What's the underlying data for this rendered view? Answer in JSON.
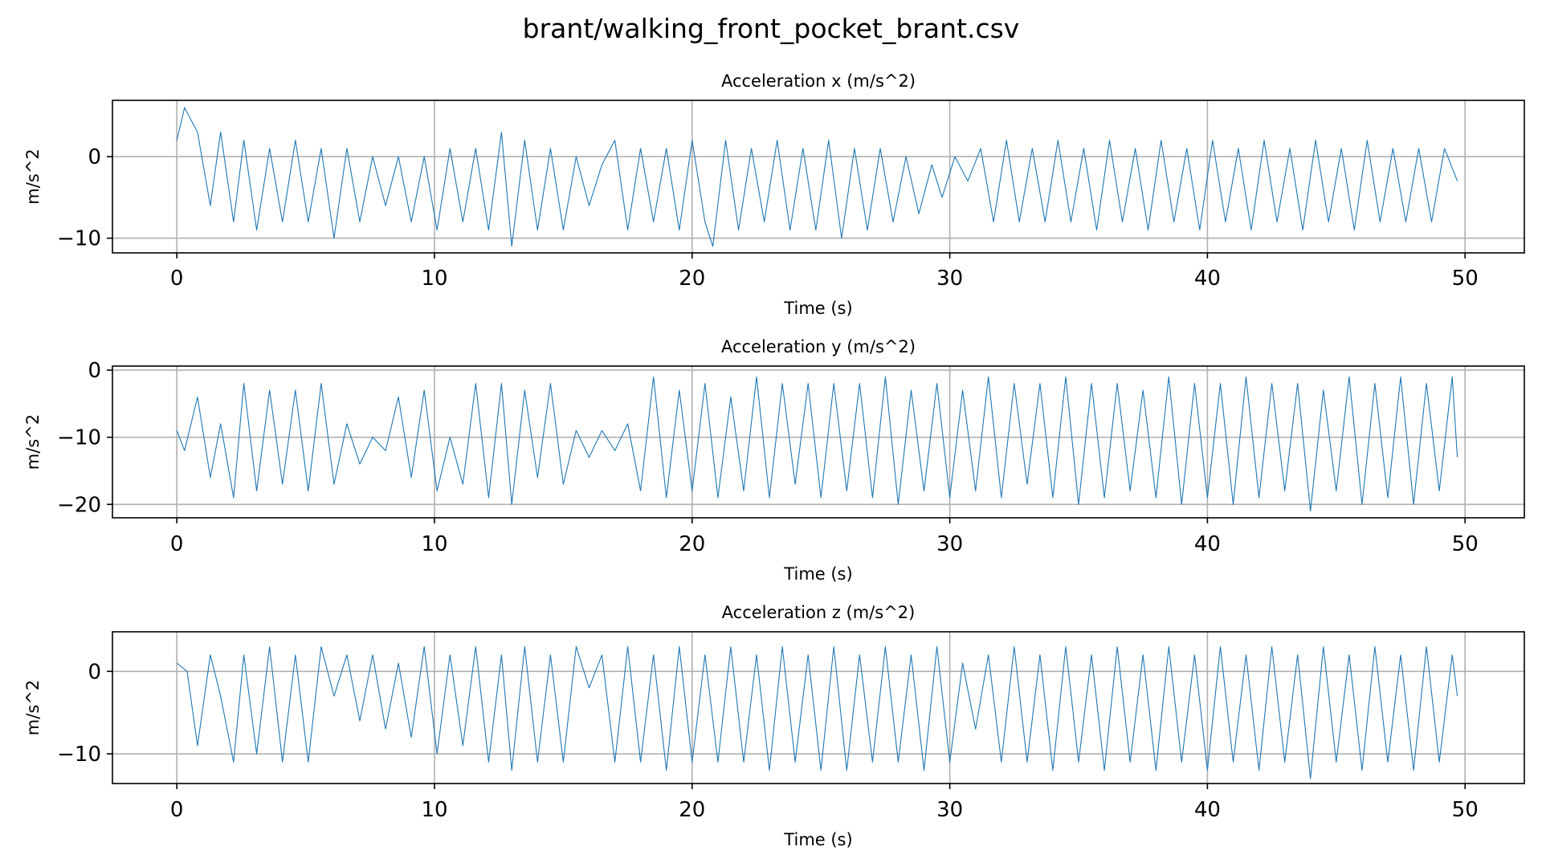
{
  "figure": {
    "suptitle": "brant/walking_front_pocket_brant.csv",
    "line_color": "#1f77b4"
  },
  "chart_data": [
    {
      "type": "line",
      "title": "Acceleration x (m/s^2)",
      "xlabel": "Time (s)",
      "ylabel": "m/s^2",
      "xlim": [
        -2.5,
        52.3
      ],
      "ylim": [
        -11.8,
        6.9
      ],
      "xticks": [
        0,
        10,
        20,
        30,
        40,
        50
      ],
      "yticks": [
        0,
        -10
      ],
      "grid": true,
      "legend": "none",
      "series": [
        {
          "x": [
            0,
            0.3,
            0.8,
            1.3,
            1.7,
            2.2,
            2.6,
            3.1,
            3.6,
            4.1,
            4.6,
            5.1,
            5.6,
            6.1,
            6.6,
            7.1,
            7.6,
            8.1,
            8.6,
            9.1,
            9.6,
            10.1,
            10.6,
            11.1,
            11.6,
            12.1,
            12.6,
            13.0,
            13.5,
            14.0,
            14.5,
            15.0,
            15.5,
            16.0,
            16.5,
            17.0,
            17.5,
            18.0,
            18.5,
            19.0,
            19.5,
            20.0,
            20.5,
            20.8,
            21.3,
            21.8,
            22.3,
            22.8,
            23.3,
            23.8,
            24.3,
            24.8,
            25.3,
            25.8,
            26.3,
            26.8,
            27.3,
            27.8,
            28.3,
            28.8,
            29.3,
            29.7,
            30.2,
            30.7,
            31.2,
            31.7,
            32.2,
            32.7,
            33.2,
            33.7,
            34.2,
            34.7,
            35.2,
            35.7,
            36.2,
            36.7,
            37.2,
            37.7,
            38.2,
            38.7,
            39.2,
            39.7,
            40.2,
            40.7,
            41.2,
            41.7,
            42.2,
            42.7,
            43.2,
            43.7,
            44.2,
            44.7,
            45.2,
            45.7,
            46.2,
            46.7,
            47.2,
            47.7,
            48.2,
            48.7,
            49.2,
            49.7
          ],
          "values": [
            2,
            6,
            3,
            -6,
            3,
            -8,
            2,
            -9,
            1,
            -8,
            2,
            -8,
            1,
            -10,
            1,
            -8,
            0,
            -6,
            0,
            -8,
            0,
            -9,
            1,
            -8,
            1,
            -9,
            3,
            -11,
            2,
            -9,
            1,
            -9,
            0,
            -6,
            -1,
            2,
            -9,
            1,
            -8,
            1,
            -9,
            2,
            -8,
            -11,
            2,
            -9,
            1,
            -8,
            2,
            -9,
            1,
            -9,
            2,
            -10,
            1,
            -9,
            1,
            -8,
            0,
            -7,
            -1,
            -5,
            0,
            -3,
            1,
            -8,
            2,
            -8,
            1,
            -8,
            2,
            -8,
            1,
            -9,
            2,
            -8,
            1,
            -9,
            2,
            -8,
            1,
            -9,
            2,
            -8,
            1,
            -9,
            2,
            -8,
            1,
            -9,
            2,
            -8,
            1,
            -9,
            2,
            -8,
            1,
            -8,
            1,
            -8,
            1,
            -3
          ]
        }
      ]
    },
    {
      "type": "line",
      "title": "Acceleration y (m/s^2)",
      "xlabel": "Time (s)",
      "ylabel": "m/s^2",
      "xlim": [
        -2.5,
        52.3
      ],
      "ylim": [
        -22.0,
        0.6
      ],
      "xticks": [
        0,
        10,
        20,
        30,
        40,
        50
      ],
      "yticks": [
        0,
        -10,
        -20
      ],
      "grid": true,
      "legend": "none",
      "series": [
        {
          "x": [
            0,
            0.3,
            0.8,
            1.3,
            1.7,
            2.2,
            2.6,
            3.1,
            3.6,
            4.1,
            4.6,
            5.1,
            5.6,
            6.1,
            6.6,
            7.1,
            7.6,
            8.1,
            8.6,
            9.1,
            9.6,
            10.1,
            10.6,
            11.1,
            11.6,
            12.1,
            12.6,
            13.0,
            13.5,
            14.0,
            14.5,
            15.0,
            15.5,
            16.0,
            16.5,
            17.0,
            17.5,
            18.0,
            18.5,
            19.0,
            19.5,
            20.0,
            20.5,
            21.0,
            21.5,
            22.0,
            22.5,
            23.0,
            23.5,
            24.0,
            24.5,
            25.0,
            25.5,
            26.0,
            26.5,
            27.0,
            27.5,
            28.0,
            28.5,
            29.0,
            29.5,
            30.0,
            30.5,
            31.0,
            31.5,
            32.0,
            32.5,
            33.0,
            33.5,
            34.0,
            34.5,
            35.0,
            35.5,
            36.0,
            36.5,
            37.0,
            37.5,
            38.0,
            38.5,
            39.0,
            39.5,
            40.0,
            40.5,
            41.0,
            41.5,
            42.0,
            42.5,
            43.0,
            43.5,
            44.0,
            44.5,
            45.0,
            45.5,
            46.0,
            46.5,
            47.0,
            47.5,
            48.0,
            48.5,
            49.0,
            49.5,
            49.7
          ],
          "values": [
            -9,
            -12,
            -4,
            -16,
            -8,
            -19,
            -2,
            -18,
            -3,
            -17,
            -3,
            -18,
            -2,
            -17,
            -8,
            -14,
            -10,
            -12,
            -4,
            -16,
            -3,
            -18,
            -10,
            -17,
            -2,
            -19,
            -2,
            -20,
            -3,
            -16,
            -2,
            -17,
            -9,
            -13,
            -9,
            -12,
            -8,
            -18,
            -1,
            -19,
            -3,
            -18,
            -2,
            -19,
            -4,
            -18,
            -1,
            -19,
            -2,
            -17,
            -2,
            -19,
            -2,
            -18,
            -2,
            -19,
            -1,
            -20,
            -3,
            -18,
            -2,
            -19,
            -3,
            -18,
            -1,
            -19,
            -2,
            -17,
            -2,
            -19,
            -1,
            -20,
            -2,
            -19,
            -2,
            -18,
            -3,
            -19,
            -1,
            -20,
            -2,
            -19,
            -2,
            -20,
            -1,
            -19,
            -2,
            -18,
            -2,
            -21,
            -3,
            -18,
            -1,
            -20,
            -2,
            -19,
            -1,
            -20,
            -2,
            -18,
            -1,
            -13
          ]
        }
      ]
    },
    {
      "type": "line",
      "title": "Acceleration z (m/s^2)",
      "xlabel": "Time (s)",
      "ylabel": "m/s^2",
      "xlim": [
        -2.5,
        52.3
      ],
      "ylim": [
        -13.6,
        4.8
      ],
      "xticks": [
        0,
        10,
        20,
        30,
        40,
        50
      ],
      "yticks": [
        0,
        -10
      ],
      "grid": true,
      "legend": "none",
      "series": [
        {
          "x": [
            0,
            0.4,
            0.8,
            1.3,
            1.7,
            2.2,
            2.6,
            3.1,
            3.6,
            4.1,
            4.6,
            5.1,
            5.6,
            6.1,
            6.6,
            7.1,
            7.6,
            8.1,
            8.6,
            9.1,
            9.6,
            10.1,
            10.6,
            11.1,
            11.6,
            12.1,
            12.6,
            13.0,
            13.5,
            14.0,
            14.5,
            15.0,
            15.5,
            16.0,
            16.5,
            17.0,
            17.5,
            18.0,
            18.5,
            19.0,
            19.5,
            20.0,
            20.5,
            21.0,
            21.5,
            22.0,
            22.5,
            23.0,
            23.5,
            24.0,
            24.5,
            25.0,
            25.5,
            26.0,
            26.5,
            27.0,
            27.5,
            28.0,
            28.5,
            29.0,
            29.5,
            30.0,
            30.5,
            31.0,
            31.5,
            32.0,
            32.5,
            33.0,
            33.5,
            34.0,
            34.5,
            35.0,
            35.5,
            36.0,
            36.5,
            37.0,
            37.5,
            38.0,
            38.5,
            39.0,
            39.5,
            40.0,
            40.5,
            41.0,
            41.5,
            42.0,
            42.5,
            43.0,
            43.5,
            44.0,
            44.5,
            45.0,
            45.5,
            46.0,
            46.5,
            47.0,
            47.5,
            48.0,
            48.5,
            49.0,
            49.5,
            49.7
          ],
          "values": [
            1,
            0,
            -9,
            2,
            -3,
            -11,
            2,
            -10,
            3,
            -11,
            2,
            -11,
            3,
            -3,
            2,
            -6,
            2,
            -7,
            1,
            -8,
            3,
            -10,
            2,
            -9,
            3,
            -11,
            2,
            -12,
            3,
            -11,
            2,
            -11,
            3,
            -2,
            2,
            -11,
            3,
            -11,
            2,
            -12,
            3,
            -11,
            2,
            -11,
            3,
            -11,
            2,
            -12,
            3,
            -11,
            2,
            -12,
            3,
            -12,
            2,
            -11,
            3,
            -11,
            2,
            -12,
            3,
            -11,
            1,
            -7,
            2,
            -11,
            3,
            -11,
            2,
            -12,
            3,
            -11,
            2,
            -12,
            3,
            -11,
            2,
            -12,
            3,
            -11,
            2,
            -12,
            3,
            -11,
            2,
            -12,
            3,
            -11,
            2,
            -13,
            3,
            -11,
            2,
            -12,
            3,
            -11,
            2,
            -12,
            3,
            -11,
            2,
            -3
          ]
        }
      ]
    }
  ]
}
